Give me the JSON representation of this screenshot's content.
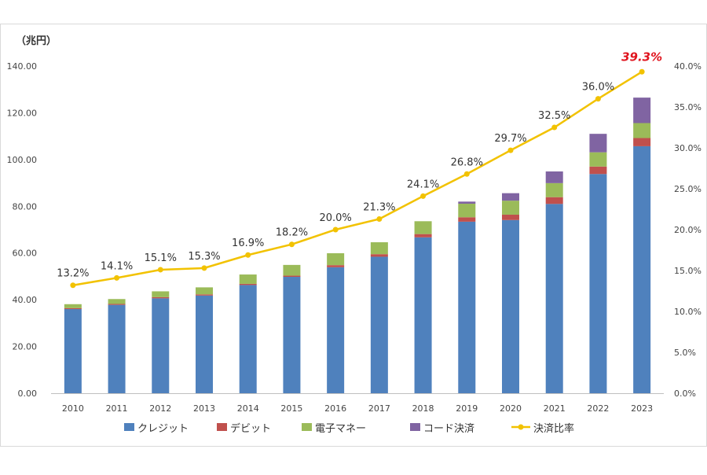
{
  "chart_data": {
    "type": "bar",
    "stacked": true,
    "categories": [
      "2010",
      "2011",
      "2012",
      "2013",
      "2014",
      "2015",
      "2016",
      "2017",
      "2018",
      "2019",
      "2020",
      "2021",
      "2022",
      "2023"
    ],
    "series": [
      {
        "name": "クレジット",
        "color": "#4F81BD",
        "values": [
          36.0,
          37.8,
          40.6,
          41.8,
          46.3,
          49.8,
          53.9,
          58.4,
          66.7,
          73.4,
          74.1,
          81.0,
          93.8,
          105.7
        ]
      },
      {
        "name": "デビット",
        "color": "#C0504D",
        "values": [
          0.4,
          0.4,
          0.5,
          0.5,
          0.5,
          0.5,
          0.9,
          1.1,
          1.4,
          1.9,
          2.3,
          2.9,
          3.2,
          3.5
        ]
      },
      {
        "name": "電子マネー",
        "color": "#9BBB59",
        "values": [
          1.7,
          2.1,
          2.5,
          3.0,
          4.0,
          4.6,
          5.1,
          5.1,
          5.5,
          5.8,
          6.0,
          6.0,
          6.1,
          6.4
        ]
      },
      {
        "name": "コード決済",
        "color": "#8064A2",
        "values": [
          0,
          0,
          0,
          0,
          0,
          0,
          0,
          0,
          0,
          0.9,
          3.2,
          5.0,
          7.9,
          10.9
        ]
      }
    ],
    "line": {
      "name": "決済比率",
      "color": "#F2C200",
      "values": [
        13.2,
        14.1,
        15.1,
        15.3,
        16.9,
        18.2,
        20.0,
        21.3,
        24.1,
        26.8,
        29.7,
        32.5,
        36.0,
        39.3
      ],
      "labels": [
        "13.2%",
        "14.1%",
        "15.1%",
        "15.3%",
        "16.9%",
        "18.2%",
        "20.0%",
        "21.3%",
        "24.1%",
        "26.8%",
        "29.7%",
        "32.5%",
        "36.0%",
        "39.3%"
      ],
      "highlight_color": "#E0141E"
    },
    "ylabel": "（兆円）",
    "ylim": [
      0,
      140
    ],
    "yticks": [
      "0.00",
      "20.00",
      "40.00",
      "60.00",
      "80.00",
      "100.00",
      "120.00",
      "140.00"
    ],
    "y2lim": [
      0,
      40
    ],
    "y2ticks": [
      "0.0%",
      "5.0%",
      "10.0%",
      "15.0%",
      "20.0%",
      "25.0%",
      "30.0%",
      "35.0%",
      "40.0%"
    ],
    "grid": false,
    "legend_position": "bottom"
  }
}
